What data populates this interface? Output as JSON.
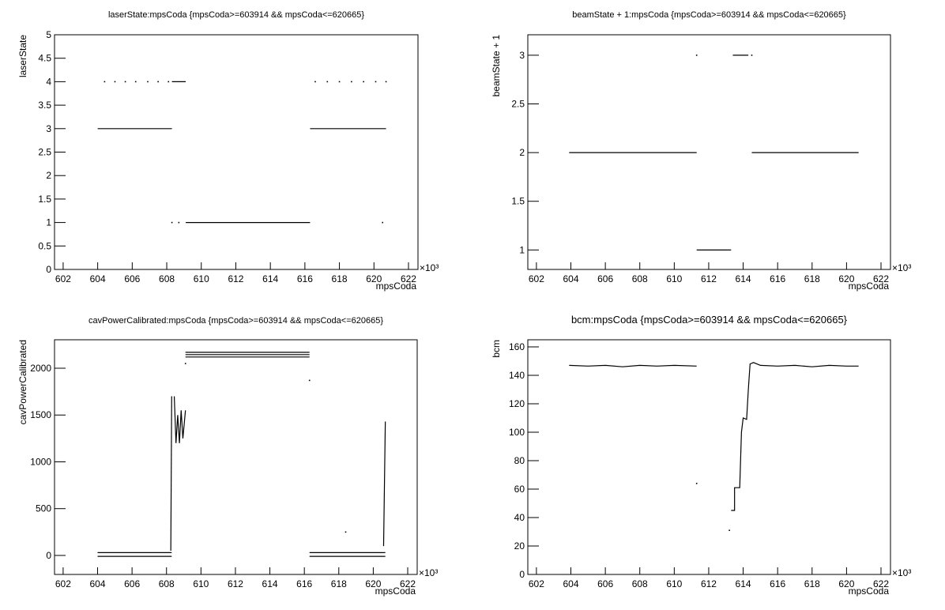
{
  "chart_data": [
    {
      "type": "line",
      "title": "laserState:mpsCoda {mpsCoda>=603914 && mpsCoda<=620665}",
      "x_label": "mpsCoda",
      "y_label": "laserState",
      "x_multiplier": "×10³",
      "xlim": [
        601.5,
        622.55
      ],
      "xticks": [
        602,
        604,
        606,
        608,
        610,
        612,
        614,
        616,
        618,
        620,
        622
      ],
      "ylim": [
        0,
        5
      ],
      "yticks": [
        0,
        0.5,
        1,
        1.5,
        2,
        2.5,
        3,
        3.5,
        4,
        4.5,
        5
      ],
      "series": [
        {
          "color": "#000000",
          "x": [
            604,
            608.3,
            null,
            604.4,
            null,
            605,
            null,
            605.6,
            null,
            606.2,
            null,
            606.9,
            null,
            607.5,
            null,
            608.1,
            null,
            608.3,
            609.1,
            null,
            608.3,
            null,
            608.7,
            null,
            609.1,
            616.3,
            null,
            616.3,
            620.7,
            null,
            616.6,
            null,
            617.3,
            null,
            618,
            null,
            618.7,
            null,
            619.4,
            null,
            620.1,
            null,
            620.7,
            null,
            620.5
          ],
          "values": [
            3,
            3,
            null,
            4,
            null,
            4,
            null,
            4,
            null,
            4,
            null,
            4,
            null,
            4,
            null,
            4,
            null,
            4,
            4,
            null,
            1,
            null,
            1,
            null,
            1,
            1,
            null,
            3,
            3,
            null,
            4,
            null,
            4,
            null,
            4,
            null,
            4,
            null,
            4,
            null,
            4,
            null,
            4,
            null,
            1
          ]
        }
      ]
    },
    {
      "type": "line",
      "title": "beamState + 1:mpsCoda {mpsCoda>=603914 && mpsCoda<=620665}",
      "x_label": "mpsCoda",
      "y_label": "beamState + 1",
      "x_multiplier": "×10³",
      "xlim": [
        601.5,
        622.55
      ],
      "xticks": [
        602,
        604,
        606,
        608,
        610,
        612,
        614,
        616,
        618,
        620,
        622
      ],
      "ylim": [
        0.8,
        3.21
      ],
      "yticks": [
        1,
        1.5,
        2,
        2.5,
        3
      ],
      "series": [
        {
          "color": "#000000",
          "x": [
            603.9,
            611.3,
            null,
            611.3,
            null,
            611.3,
            613.3,
            null,
            613.4,
            614.3,
            null,
            614.5,
            null,
            614.5,
            620.7
          ],
          "values": [
            2,
            2,
            null,
            3,
            null,
            1,
            1,
            null,
            3,
            3,
            null,
            3,
            null,
            2,
            2
          ]
        }
      ]
    },
    {
      "type": "line",
      "title": "cavPowerCalibrated:mpsCoda {mpsCoda>=603914 && mpsCoda<=620665}",
      "x_label": "mpsCoda",
      "y_label": "cavPowerCalibrated",
      "x_multiplier": "×10³",
      "xlim": [
        601.5,
        622.55
      ],
      "xticks": [
        602,
        604,
        606,
        608,
        610,
        612,
        614,
        616,
        618,
        620,
        622
      ],
      "ylim": [
        -203,
        2304
      ],
      "yticks": [
        0,
        500,
        1000,
        1500,
        2000
      ],
      "series": [
        {
          "color": "#000000",
          "x": [
            604,
            608.3,
            null,
            604,
            608.3,
            null,
            608.25,
            608.3,
            null,
            608.45,
            608.55,
            608.65,
            608.75,
            608.85,
            608.95,
            609.1,
            null,
            609.1,
            616.3,
            null,
            609.1,
            616.3,
            null,
            609.1,
            616.3,
            null,
            609.1,
            null,
            616.3,
            null,
            616.3,
            620.7,
            null,
            616.3,
            620.7,
            null,
            620.6,
            620.7,
            null,
            618.4
          ],
          "values": [
            30,
            30,
            null,
            -10,
            -10,
            null,
            50,
            1700,
            null,
            1700,
            1200,
            1500,
            1200,
            1550,
            1250,
            1550,
            null,
            2170,
            2170,
            null,
            2145,
            2145,
            null,
            2120,
            2120,
            null,
            2050,
            null,
            1870,
            null,
            30,
            30,
            null,
            -10,
            -10,
            null,
            100,
            1430,
            null,
            250
          ]
        }
      ]
    },
    {
      "type": "line",
      "title": "bcm:mpsCoda {mpsCoda>=603914 && mpsCoda<=620665}",
      "x_label": "mpsCoda",
      "y_label": "bcm",
      "x_multiplier": "×10³",
      "xlim": [
        601.5,
        622.55
      ],
      "xticks": [
        602,
        604,
        606,
        608,
        610,
        612,
        614,
        616,
        618,
        620,
        622
      ],
      "ylim": [
        0,
        165
      ],
      "yticks": [
        0,
        20,
        40,
        60,
        80,
        100,
        120,
        140,
        160
      ],
      "series": [
        {
          "color": "#000000",
          "x": [
            603.9,
            605,
            606,
            607,
            608,
            609,
            610,
            611.3,
            null,
            611.3,
            null,
            613.2,
            null,
            613.3,
            613.5,
            613.5,
            613.8,
            613.9,
            614,
            614.2,
            614.3,
            614.4,
            614.6,
            615,
            616,
            617,
            618,
            619,
            620,
            620.7
          ],
          "values": [
            147,
            146.5,
            147,
            146,
            147,
            146.5,
            147,
            146.5,
            null,
            64,
            null,
            31,
            null,
            45,
            45,
            61,
            61,
            100,
            110,
            109,
            130,
            148,
            149,
            147,
            146.5,
            147,
            146,
            147,
            146.5,
            146.5
          ]
        }
      ]
    }
  ]
}
